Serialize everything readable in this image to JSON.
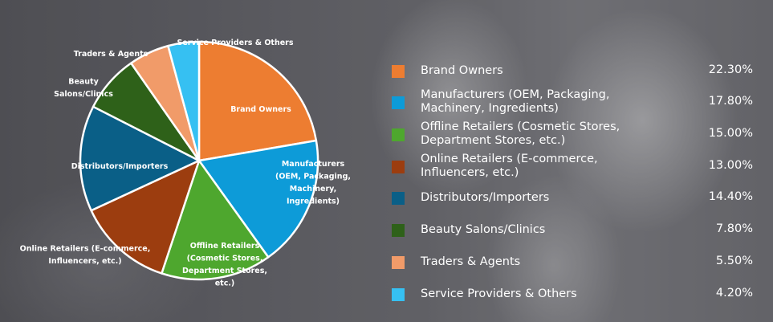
{
  "chart_data": {
    "type": "pie",
    "title": "",
    "slices": [
      {
        "label": "Brand Owners",
        "pie_label_lines": [
          "Brand Owners"
        ],
        "value": 22.3,
        "display": "22.30%",
        "color": "#ed7d31",
        "legend_lines": [
          "Brand Owners"
        ]
      },
      {
        "label": "Manufacturers (OEM, Packaging, Machinery, Ingredients)",
        "pie_label_lines": [
          "Manufacturers",
          "(OEM, Packaging,",
          "Machinery,",
          "Ingredients)"
        ],
        "value": 17.8,
        "display": "17.80%",
        "color": "#0d9bd8",
        "legend_lines": [
          "Manufacturers (OEM, Packaging,",
          "Machinery, Ingredients)"
        ]
      },
      {
        "label": "Offline Retailers (Cosmetic Stores, Department Stores, etc.)",
        "pie_label_lines": [
          "Offline Retailers",
          "(Cosmetic Stores,",
          "Department Stores,",
          "etc.)"
        ],
        "value": 15.0,
        "display": "15.00%",
        "color": "#4ea72e",
        "legend_lines": [
          "Offline Retailers (Cosmetic Stores,",
          "Department Stores, etc.)"
        ]
      },
      {
        "label": "Online Retailers (E-commerce, Influencers, etc.)",
        "pie_label_lines": [
          "Online Retailers (E-commerce,",
          "Influencers, etc.)"
        ],
        "value": 13.0,
        "display": "13.00%",
        "color": "#9c3d0f",
        "legend_lines": [
          "Online Retailers (E-commerce,",
          "Influencers, etc.)"
        ]
      },
      {
        "label": "Distributors/Importers",
        "pie_label_lines": [
          "Distributors/Importers"
        ],
        "value": 14.4,
        "display": "14.40%",
        "color": "#0a5f87",
        "legend_lines": [
          "Distributors/Importers"
        ]
      },
      {
        "label": "Beauty Salons/Clinics",
        "pie_label_lines": [
          "Beauty",
          "Salons/Clinics"
        ],
        "value": 7.8,
        "display": "7.80%",
        "color": "#2e6119",
        "legend_lines": [
          "Beauty Salons/Clinics"
        ]
      },
      {
        "label": "Traders & Agents",
        "pie_label_lines": [
          "Traders & Agents"
        ],
        "value": 5.5,
        "display": "5.50%",
        "color": "#f19b69",
        "legend_lines": [
          "Traders & Agents"
        ]
      },
      {
        "label": "Service Providers & Others",
        "pie_label_lines": [
          "Service Providers & Others"
        ],
        "value": 4.2,
        "display": "4.20%",
        "color": "#36c0f2",
        "legend_lines": [
          "Service Providers & Others"
        ]
      }
    ],
    "legend_placement": "right"
  }
}
